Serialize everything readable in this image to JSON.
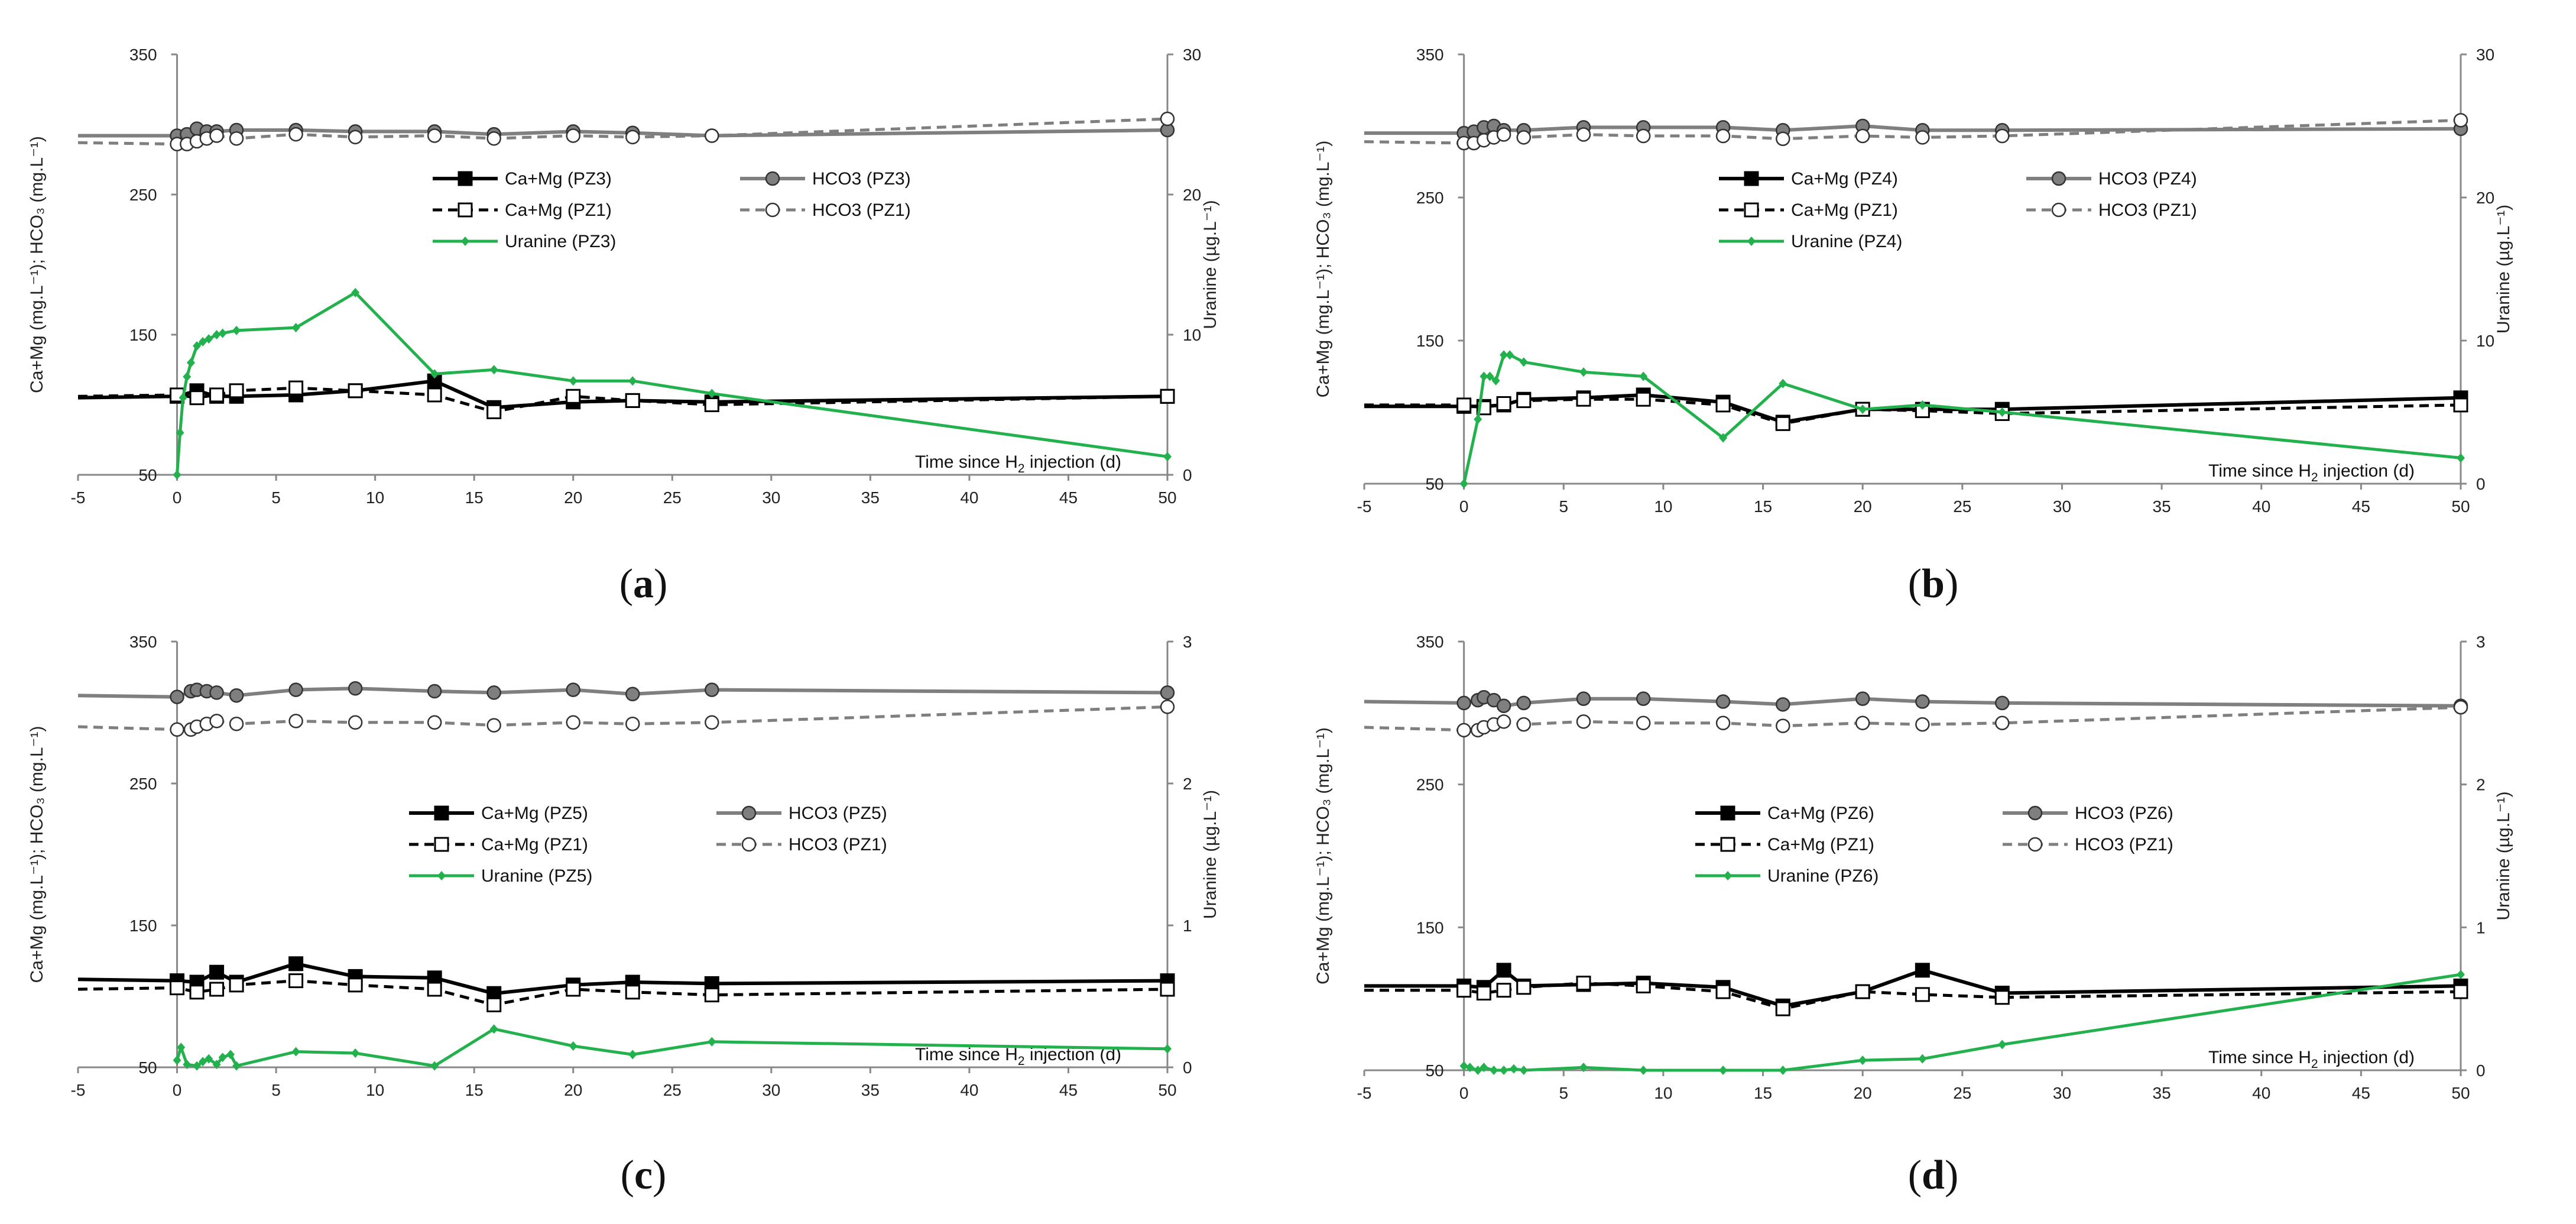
{
  "figure": {
    "panel_labels": [
      "a",
      "b",
      "c",
      "d"
    ]
  },
  "colors": {
    "ca_mg_pz": "#000000",
    "ca_mg_pz1": "#000000",
    "hco3_pz": "#7f7f7f",
    "hco3_pz1": "#7f7f7f",
    "uranine": "#22b14c",
    "axis": "#888888"
  },
  "chart_data": [
    {
      "type": "line",
      "panel": "a",
      "xlabel_prefix": "Time since H",
      "xlabel_sub": "2",
      "xlabel_suffix": " injection (d)",
      "ylabel_left": "Ca+Mg (mg.L⁻¹); HCO₃ (mg.L⁻¹)",
      "ylabel_right": "Uranine (µg.L⁻¹)",
      "xlim": [
        -5,
        50
      ],
      "xticks": [
        -5,
        0,
        5,
        10,
        15,
        20,
        25,
        30,
        35,
        40,
        45,
        50
      ],
      "ylim_left": [
        50,
        350
      ],
      "yticks_left": [
        50,
        150,
        250,
        350
      ],
      "ylim_right": [
        0,
        30
      ],
      "yticks_right": [
        0,
        10,
        20,
        30
      ],
      "series": [
        {
          "name": "Ca+Mg (PZ3)",
          "axis": "left",
          "style": "ca_pz",
          "x": [
            -5,
            0,
            1,
            2,
            3,
            6,
            9,
            13,
            16,
            20,
            23,
            27,
            50
          ],
          "y": [
            105,
            106,
            110,
            106,
            106,
            107,
            110,
            117,
            98,
            102,
            103,
            102,
            106
          ]
        },
        {
          "name": "HCO3 (PZ3)",
          "axis": "left",
          "style": "hco3_pz",
          "x": [
            -5,
            0,
            0.5,
            1,
            1.5,
            2,
            3,
            6,
            9,
            13,
            16,
            20,
            23,
            27,
            50
          ],
          "y": [
            292,
            292,
            293,
            297,
            295,
            295,
            296,
            296,
            295,
            295,
            293,
            295,
            294,
            292,
            296
          ]
        },
        {
          "name": "Ca+Mg (PZ1)",
          "axis": "left",
          "style": "ca_pz1",
          "x": [
            -5,
            0,
            1,
            2,
            3,
            6,
            9,
            13,
            16,
            20,
            23,
            27,
            50
          ],
          "y": [
            106,
            107,
            105,
            107,
            110,
            112,
            110,
            107,
            95,
            106,
            103,
            100,
            106
          ]
        },
        {
          "name": "HCO3 (PZ1)",
          "axis": "left",
          "style": "hco3_pz1",
          "x": [
            -5,
            0,
            0.5,
            1,
            1.5,
            2,
            3,
            6,
            9,
            13,
            16,
            20,
            23,
            27,
            50
          ],
          "y": [
            287,
            286,
            286,
            288,
            290,
            292,
            290,
            293,
            291,
            292,
            290,
            292,
            291,
            292,
            304
          ]
        },
        {
          "name": "Uranine (PZ3)",
          "axis": "right",
          "style": "uranine",
          "x": [
            0,
            0.15,
            0.3,
            0.5,
            0.7,
            1,
            1.3,
            1.6,
            2,
            2.3,
            3,
            6,
            9,
            13,
            16,
            20,
            23,
            27,
            50
          ],
          "y": [
            0,
            3,
            5.5,
            7,
            8,
            9.2,
            9.5,
            9.7,
            10,
            10.1,
            10.3,
            10.5,
            13,
            7.2,
            7.5,
            6.7,
            6.7,
            5.8,
            1.3
          ]
        }
      ],
      "legend": [
        {
          "label": "Ca+Mg (PZ3)",
          "style": "ca_pz"
        },
        {
          "label": "HCO3 (PZ3)",
          "style": "hco3_pz"
        },
        {
          "label": "Ca+Mg (PZ1)",
          "style": "ca_pz1"
        },
        {
          "label": "HCO3 (PZ1)",
          "style": "hco3_pz1"
        },
        {
          "label": "Uranine (PZ3)",
          "style": "uranine"
        }
      ]
    },
    {
      "type": "line",
      "panel": "b",
      "xlabel_prefix": "Time since H",
      "xlabel_sub": "2",
      "xlabel_suffix": " injection (d)",
      "ylabel_left": "Ca+Mg (mg.L⁻¹); HCO₃ (mg.L⁻¹)",
      "ylabel_right": "Uranine (µg.L⁻¹)",
      "xlim": [
        -5,
        50
      ],
      "xticks": [
        -5,
        0,
        5,
        10,
        15,
        20,
        25,
        30,
        35,
        40,
        45,
        50
      ],
      "ylim_left": [
        50,
        350
      ],
      "yticks_left": [
        50,
        150,
        250,
        350
      ],
      "ylim_right": [
        0,
        30
      ],
      "yticks_right": [
        0,
        10,
        20,
        30
      ],
      "series": [
        {
          "name": "Ca+Mg (PZ4)",
          "axis": "left",
          "style": "ca_pz",
          "x": [
            -5,
            0,
            1,
            2,
            3,
            6,
            9,
            13,
            16,
            20,
            23,
            27,
            50
          ],
          "y": [
            104,
            104,
            104,
            105,
            109,
            110,
            112,
            107,
            93,
            102,
            102,
            102,
            110
          ]
        },
        {
          "name": "HCO3 (PZ4)",
          "axis": "left",
          "style": "hco3_pz",
          "x": [
            -5,
            0,
            0.5,
            1,
            1.5,
            2,
            3,
            6,
            9,
            13,
            16,
            20,
            23,
            27,
            50
          ],
          "y": [
            295,
            295,
            296,
            299,
            300,
            297,
            297,
            299,
            299,
            299,
            297,
            300,
            297,
            297,
            298
          ]
        },
        {
          "name": "Ca+Mg (PZ1)",
          "axis": "left",
          "style": "ca_pz1",
          "x": [
            -5,
            0,
            1,
            2,
            3,
            6,
            9,
            13,
            16,
            20,
            23,
            27,
            50
          ],
          "y": [
            105,
            105,
            103,
            106,
            108,
            109,
            109,
            105,
            92,
            102,
            101,
            99,
            105
          ]
        },
        {
          "name": "HCO3 (PZ1)",
          "axis": "left",
          "style": "hco3_pz1",
          "x": [
            -5,
            0,
            0.5,
            1,
            1.5,
            2,
            3,
            6,
            9,
            13,
            16,
            20,
            23,
            27,
            50
          ],
          "y": [
            289,
            288,
            288,
            290,
            292,
            294,
            292,
            294,
            293,
            293,
            291,
            293,
            292,
            293,
            304
          ]
        },
        {
          "name": "Uranine (PZ4)",
          "axis": "right",
          "style": "uranine",
          "x": [
            0,
            0.7,
            1,
            1.3,
            1.6,
            2,
            2.3,
            3,
            6,
            9,
            13,
            16,
            20,
            23,
            27,
            50
          ],
          "y": [
            0,
            4.5,
            7.5,
            7.5,
            7.2,
            9,
            9,
            8.5,
            7.8,
            7.5,
            3.2,
            7,
            5.2,
            5.5,
            5,
            1.8
          ]
        }
      ],
      "legend": [
        {
          "label": "Ca+Mg (PZ4)",
          "style": "ca_pz"
        },
        {
          "label": "HCO3 (PZ4)",
          "style": "hco3_pz"
        },
        {
          "label": "Ca+Mg (PZ1)",
          "style": "ca_pz1"
        },
        {
          "label": "HCO3 (PZ1)",
          "style": "hco3_pz1"
        },
        {
          "label": "Uranine (PZ4)",
          "style": "uranine"
        }
      ]
    },
    {
      "type": "line",
      "panel": "c",
      "xlabel_prefix": "Time since H",
      "xlabel_sub": "2",
      "xlabel_suffix": " injection (d)",
      "ylabel_left": "Ca+Mg (mg.L⁻¹); HCO₃ (mg.L⁻¹)",
      "ylabel_right": "Uranine (µg.L⁻¹)",
      "xlim": [
        -5,
        50
      ],
      "xticks": [
        -5,
        0,
        5,
        10,
        15,
        20,
        25,
        30,
        35,
        40,
        45,
        50
      ],
      "ylim_left": [
        50,
        350
      ],
      "yticks_left": [
        50,
        150,
        250,
        350
      ],
      "ylim_right": [
        0,
        3
      ],
      "yticks_right": [
        0,
        1,
        2,
        3
      ],
      "series": [
        {
          "name": "Ca+Mg (PZ5)",
          "axis": "left",
          "style": "ca_pz",
          "x": [
            -5,
            0,
            1,
            2,
            3,
            6,
            9,
            13,
            16,
            20,
            23,
            27,
            50
          ],
          "y": [
            112,
            111,
            110,
            117,
            110,
            123,
            114,
            113,
            102,
            108,
            110,
            109,
            111
          ]
        },
        {
          "name": "HCO3 (PZ5)",
          "axis": "left",
          "style": "hco3_pz",
          "x": [
            -5,
            0,
            0.7,
            1,
            1.5,
            2,
            3,
            6,
            9,
            13,
            16,
            20,
            23,
            27,
            50
          ],
          "y": [
            312,
            311,
            315,
            316,
            315,
            314,
            312,
            316,
            317,
            315,
            314,
            316,
            313,
            316,
            314
          ]
        },
        {
          "name": "Ca+Mg (PZ1)",
          "axis": "left",
          "style": "ca_pz1",
          "x": [
            -5,
            0,
            1,
            2,
            3,
            6,
            9,
            13,
            16,
            20,
            23,
            27,
            50
          ],
          "y": [
            105,
            106,
            103,
            105,
            108,
            111,
            108,
            105,
            94,
            105,
            103,
            101,
            105
          ]
        },
        {
          "name": "HCO3 (PZ1)",
          "axis": "left",
          "style": "hco3_pz1",
          "x": [
            -5,
            0,
            0.7,
            1,
            1.5,
            2,
            3,
            6,
            9,
            13,
            16,
            20,
            23,
            27,
            50
          ],
          "y": [
            290,
            288,
            288,
            290,
            292,
            294,
            292,
            294,
            293,
            293,
            291,
            293,
            292,
            293,
            304
          ]
        },
        {
          "name": "Uranine (PZ5)",
          "axis": "right",
          "style": "uranine",
          "x": [
            0,
            0.2,
            0.5,
            1,
            1.3,
            1.6,
            2,
            2.3,
            2.7,
            3,
            6,
            9,
            13,
            16,
            20,
            23,
            27,
            50
          ],
          "y": [
            0.05,
            0.14,
            0.02,
            0.01,
            0.04,
            0.06,
            0.02,
            0.07,
            0.09,
            0.01,
            0.11,
            0.1,
            0.01,
            0.27,
            0.15,
            0.09,
            0.18,
            0.13
          ]
        }
      ],
      "legend": [
        {
          "label": "Ca+Mg (PZ5)",
          "style": "ca_pz"
        },
        {
          "label": "HCO3 (PZ5)",
          "style": "hco3_pz"
        },
        {
          "label": "Ca+Mg (PZ1)",
          "style": "ca_pz1"
        },
        {
          "label": "HCO3 (PZ1)",
          "style": "hco3_pz1"
        },
        {
          "label": "Uranine (PZ5)",
          "style": "uranine"
        }
      ]
    },
    {
      "type": "line",
      "panel": "d",
      "xlabel_prefix": "Time since H",
      "xlabel_sub": "2",
      "xlabel_suffix": " injection (d)",
      "ylabel_left": "Ca+Mg (mg.L⁻¹); HCO₃ (mg.L⁻¹)",
      "ylabel_right": "Uranine (µg.L⁻¹)",
      "xlim": [
        -5,
        50
      ],
      "xticks": [
        -5,
        0,
        5,
        10,
        15,
        20,
        25,
        30,
        35,
        40,
        45,
        50
      ],
      "ylim_left": [
        50,
        350
      ],
      "yticks_left": [
        50,
        150,
        250,
        350
      ],
      "ylim_right": [
        0,
        3
      ],
      "yticks_right": [
        0,
        1,
        2,
        3
      ],
      "series": [
        {
          "name": "Ca+Mg (PZ6)",
          "axis": "left",
          "style": "ca_pz",
          "x": [
            -5,
            0,
            1,
            2,
            3,
            6,
            9,
            13,
            16,
            20,
            23,
            27,
            50
          ],
          "y": [
            109,
            109,
            108,
            120,
            109,
            110,
            111,
            108,
            95,
            105,
            120,
            104,
            109
          ]
        },
        {
          "name": "HCO3 (PZ6)",
          "axis": "left",
          "style": "hco3_pz",
          "x": [
            -5,
            0,
            0.7,
            1,
            1.5,
            2,
            3,
            6,
            9,
            13,
            16,
            20,
            23,
            27,
            50
          ],
          "y": [
            308,
            307,
            309,
            311,
            309,
            305,
            307,
            310,
            310,
            308,
            306,
            310,
            308,
            307,
            305
          ]
        },
        {
          "name": "Ca+Mg (PZ1)",
          "axis": "left",
          "style": "ca_pz1",
          "x": [
            -5,
            0,
            1,
            2,
            3,
            6,
            9,
            13,
            16,
            20,
            23,
            27,
            50
          ],
          "y": [
            106,
            106,
            104,
            106,
            108,
            111,
            109,
            105,
            93,
            105,
            103,
            101,
            105
          ]
        },
        {
          "name": "HCO3 (PZ1)",
          "axis": "left",
          "style": "hco3_pz1",
          "x": [
            -5,
            0,
            0.7,
            1,
            1.5,
            2,
            3,
            6,
            9,
            13,
            16,
            20,
            23,
            27,
            50
          ],
          "y": [
            290,
            288,
            288,
            290,
            292,
            294,
            292,
            294,
            293,
            293,
            291,
            293,
            292,
            293,
            304
          ]
        },
        {
          "name": "Uranine (PZ6)",
          "axis": "right",
          "style": "uranine",
          "x": [
            0,
            0.3,
            0.7,
            1,
            1.5,
            2,
            2.5,
            3,
            6,
            9,
            13,
            16,
            20,
            23,
            27,
            50
          ],
          "y": [
            0.03,
            0.02,
            0.0,
            0.02,
            0.0,
            0.0,
            0.01,
            0.0,
            0.02,
            0.0,
            0.0,
            0.0,
            0.07,
            0.08,
            0.18,
            0.67
          ]
        }
      ],
      "legend": [
        {
          "label": "Ca+Mg (PZ6)",
          "style": "ca_pz"
        },
        {
          "label": "HCO3 (PZ6)",
          "style": "hco3_pz"
        },
        {
          "label": "Ca+Mg (PZ1)",
          "style": "ca_pz1"
        },
        {
          "label": "HCO3 (PZ1)",
          "style": "hco3_pz1"
        },
        {
          "label": "Uranine (PZ6)",
          "style": "uranine"
        }
      ]
    }
  ]
}
